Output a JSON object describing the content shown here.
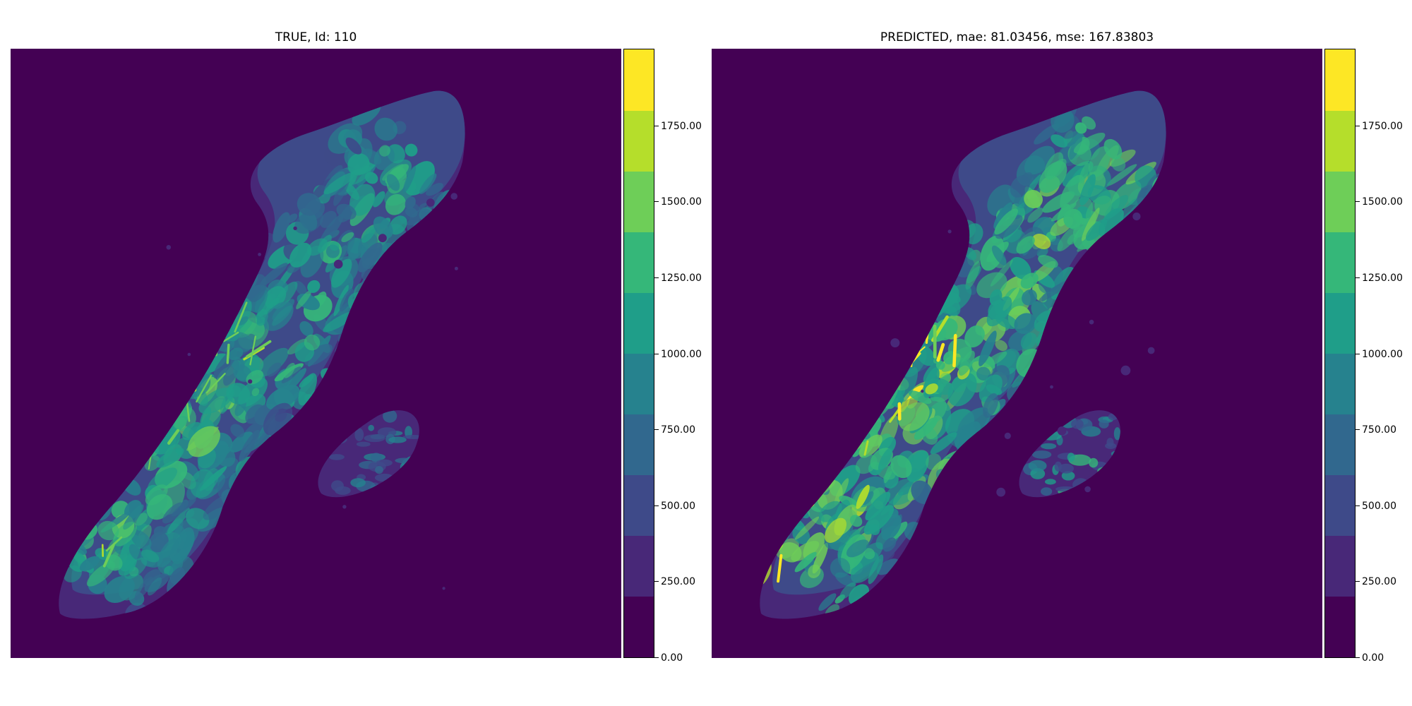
{
  "chart_data": [
    {
      "type": "heatmap",
      "title": "TRUE, Id: 110",
      "xlabel": "",
      "ylabel": "",
      "colormap": "viridis",
      "levels": [
        0,
        222.2,
        444.4,
        666.7,
        888.9,
        1111.1,
        1333.3,
        1555.6,
        1777.8,
        2000
      ],
      "colorbar": {
        "ticks": [
          0,
          250,
          500,
          750,
          1000,
          1250,
          1500,
          1750
        ],
        "tick_labels": [
          "0.00",
          "250.00",
          "500.00",
          "750.00",
          "1000.00",
          "1250.00",
          "1500.00",
          "1750.00"
        ],
        "range": [
          0,
          2000
        ]
      },
      "colors": [
        "#440154",
        "#482878",
        "#3e4a89",
        "#31688e",
        "#26828e",
        "#1f9e89",
        "#35b779",
        "#6ece58",
        "#b5de2b",
        "#fde725"
      ],
      "grid": false
    },
    {
      "type": "heatmap",
      "title": "PREDICTED, mae: 81.03456, mse: 167.83803",
      "xlabel": "",
      "ylabel": "",
      "colormap": "viridis",
      "levels": [
        0,
        222.2,
        444.4,
        666.7,
        888.9,
        1111.1,
        1333.3,
        1555.6,
        1777.8,
        2000
      ],
      "colorbar": {
        "ticks": [
          0,
          250,
          500,
          750,
          1000,
          1250,
          1500,
          1750
        ],
        "tick_labels": [
          "0.00",
          "250.00",
          "500.00",
          "750.00",
          "1000.00",
          "1250.00",
          "1500.00",
          "1750.00"
        ],
        "range": [
          0,
          2000
        ]
      },
      "colors": [
        "#440154",
        "#482878",
        "#3e4a89",
        "#31688e",
        "#26828e",
        "#1f9e89",
        "#35b779",
        "#6ece58",
        "#b5de2b",
        "#fde725"
      ],
      "grid": false
    }
  ]
}
